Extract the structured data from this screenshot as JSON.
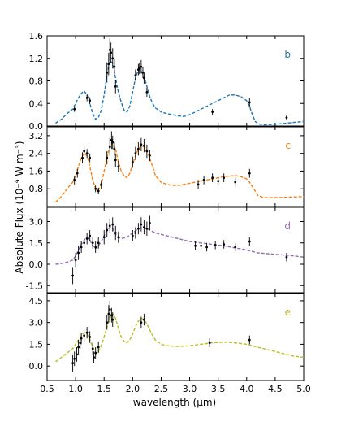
{
  "chart_data": {
    "type": "line",
    "xlabel": "wavelength (μm)",
    "ylabel": "Absolute Flux (10⁻⁹ W m⁻³)",
    "xlim": [
      0.5,
      5.0
    ],
    "xticks": [
      "0.5",
      "1.0",
      "1.5",
      "2.0",
      "2.5",
      "3.0",
      "3.5",
      "4.0",
      "4.5",
      "5.0"
    ],
    "grid": false,
    "panels": [
      {
        "label": "b",
        "color": "#1f77b4",
        "ylim": [
          0.0,
          1.6
        ],
        "yticks": [
          "0.0",
          "0.4",
          "0.8",
          "1.2",
          "1.6"
        ],
        "model": {
          "x": [
            0.65,
            0.75,
            0.85,
            0.95,
            1.0,
            1.05,
            1.1,
            1.15,
            1.2,
            1.25,
            1.3,
            1.35,
            1.4,
            1.45,
            1.5,
            1.55,
            1.6,
            1.65,
            1.7,
            1.75,
            1.8,
            1.85,
            1.9,
            1.95,
            2.0,
            2.05,
            2.1,
            2.15,
            2.2,
            2.25,
            2.3,
            2.35,
            2.4,
            2.5,
            2.6,
            2.7,
            2.8,
            2.9,
            3.0,
            3.1,
            3.2,
            3.3,
            3.4,
            3.5,
            3.6,
            3.7,
            3.8,
            3.9,
            4.0,
            4.05,
            4.1,
            4.15,
            4.2,
            4.3,
            4.5,
            4.7,
            5.0
          ],
          "y": [
            0.05,
            0.12,
            0.22,
            0.3,
            0.4,
            0.5,
            0.58,
            0.62,
            0.55,
            0.4,
            0.22,
            0.12,
            0.15,
            0.28,
            0.55,
            0.9,
            1.15,
            1.12,
            0.85,
            0.6,
            0.42,
            0.28,
            0.25,
            0.35,
            0.6,
            0.85,
            1.0,
            0.98,
            0.88,
            0.7,
            0.52,
            0.4,
            0.32,
            0.25,
            0.22,
            0.2,
            0.18,
            0.17,
            0.2,
            0.25,
            0.3,
            0.35,
            0.4,
            0.45,
            0.5,
            0.55,
            0.55,
            0.52,
            0.45,
            0.35,
            0.2,
            0.08,
            0.04,
            0.02,
            0.03,
            0.05,
            0.08
          ]
        },
        "observations": {
          "x": [
            0.98,
            1.2,
            1.25,
            1.55,
            1.58,
            1.6,
            1.62,
            1.65,
            1.68,
            1.7,
            2.05,
            2.1,
            2.12,
            2.15,
            2.18,
            2.2,
            2.25,
            3.4,
            4.05,
            4.7
          ],
          "y": [
            0.3,
            0.5,
            0.45,
            0.95,
            1.1,
            1.35,
            1.3,
            1.2,
            1.05,
            0.7,
            0.9,
            1.0,
            1.02,
            1.05,
            0.95,
            0.85,
            0.6,
            0.25,
            0.42,
            0.15
          ],
          "err": [
            0.05,
            0.06,
            0.06,
            0.18,
            0.2,
            0.2,
            0.18,
            0.18,
            0.15,
            0.12,
            0.1,
            0.1,
            0.1,
            0.12,
            0.1,
            0.1,
            0.08,
            0.05,
            0.08,
            0.05
          ]
        }
      },
      {
        "label": "c",
        "color": "#ff7f0e",
        "ylim": [
          0.0,
          3.6
        ],
        "yticks": [
          "0.8",
          "1.6",
          "2.4",
          "3.2"
        ],
        "model": {
          "x": [
            0.65,
            0.75,
            0.85,
            0.95,
            1.0,
            1.05,
            1.1,
            1.15,
            1.2,
            1.25,
            1.3,
            1.35,
            1.4,
            1.45,
            1.5,
            1.55,
            1.6,
            1.65,
            1.7,
            1.75,
            1.8,
            1.85,
            1.9,
            1.95,
            2.0,
            2.05,
            2.1,
            2.15,
            2.2,
            2.25,
            2.3,
            2.35,
            2.4,
            2.5,
            2.6,
            2.7,
            2.8,
            2.9,
            3.0,
            3.2,
            3.4,
            3.6,
            3.8,
            3.9,
            4.0,
            4.05,
            4.1,
            4.15,
            4.2,
            4.3,
            4.5,
            4.7,
            5.0
          ],
          "y": [
            0.2,
            0.45,
            0.8,
            1.1,
            1.4,
            1.8,
            2.2,
            2.4,
            2.3,
            1.8,
            1.2,
            0.8,
            0.75,
            1.0,
            1.6,
            2.2,
            2.7,
            2.9,
            2.6,
            2.0,
            1.6,
            1.4,
            1.3,
            1.5,
            1.9,
            2.3,
            2.6,
            2.75,
            2.7,
            2.5,
            2.2,
            1.8,
            1.4,
            1.1,
            1.0,
            0.95,
            0.95,
            1.0,
            1.05,
            1.15,
            1.25,
            1.35,
            1.4,
            1.35,
            1.25,
            1.1,
            0.9,
            0.7,
            0.5,
            0.4,
            0.4,
            0.42,
            0.45
          ]
        },
        "observations": {
          "x": [
            0.98,
            1.03,
            1.12,
            1.15,
            1.2,
            1.25,
            1.35,
            1.4,
            1.45,
            1.55,
            1.6,
            1.63,
            1.65,
            1.68,
            1.7,
            1.75,
            2.0,
            2.05,
            2.1,
            2.15,
            2.2,
            2.25,
            2.3,
            3.15,
            3.25,
            3.4,
            3.5,
            3.6,
            3.8,
            4.05
          ],
          "y": [
            1.2,
            1.5,
            2.2,
            2.5,
            2.4,
            2.2,
            0.8,
            0.7,
            1.0,
            2.2,
            2.7,
            3.0,
            2.9,
            2.6,
            2.1,
            1.8,
            2.0,
            2.4,
            2.6,
            2.8,
            2.75,
            2.5,
            2.3,
            1.0,
            1.2,
            1.3,
            1.15,
            1.3,
            1.1,
            1.5
          ],
          "err": [
            0.2,
            0.2,
            0.25,
            0.2,
            0.2,
            0.2,
            0.15,
            0.15,
            0.2,
            0.3,
            0.4,
            0.4,
            0.3,
            0.3,
            0.3,
            0.25,
            0.25,
            0.3,
            0.3,
            0.3,
            0.3,
            0.3,
            0.25,
            0.2,
            0.2,
            0.2,
            0.2,
            0.2,
            0.2,
            0.2
          ]
        }
      },
      {
        "label": "d",
        "color": "#9467bd",
        "ylim": [
          -2.0,
          4.0
        ],
        "yticks": [
          "-1.5",
          "0.0",
          "1.5",
          "3.0"
        ],
        "model": {
          "x": [
            0.65,
            0.75,
            0.85,
            0.95,
            1.0,
            1.05,
            1.1,
            1.15,
            1.2,
            1.25,
            1.3,
            1.35,
            1.4,
            1.45,
            1.5,
            1.55,
            1.6,
            1.65,
            1.7,
            1.75,
            1.8,
            1.9,
            2.0,
            2.1,
            2.2,
            2.3,
            2.4,
            2.6,
            2.8,
            3.0,
            3.2,
            3.4,
            3.6,
            3.8,
            4.0,
            4.2,
            4.5,
            4.8,
            5.0
          ],
          "y": [
            0.0,
            0.05,
            0.15,
            0.3,
            0.6,
            1.0,
            1.4,
            1.7,
            1.9,
            1.7,
            1.3,
            1.1,
            1.3,
            1.6,
            2.0,
            2.4,
            2.6,
            2.5,
            2.1,
            1.9,
            1.8,
            1.9,
            2.2,
            2.5,
            2.6,
            2.4,
            2.2,
            2.0,
            1.8,
            1.6,
            1.5,
            1.4,
            1.3,
            1.15,
            1.0,
            0.8,
            0.7,
            0.6,
            0.5
          ]
        },
        "observations": {
          "x": [
            0.95,
            1.0,
            1.05,
            1.1,
            1.15,
            1.2,
            1.25,
            1.3,
            1.35,
            1.4,
            1.5,
            1.55,
            1.6,
            1.65,
            1.7,
            1.75,
            2.0,
            2.05,
            2.1,
            2.15,
            2.2,
            2.25,
            2.3,
            3.1,
            3.2,
            3.3,
            3.45,
            3.6,
            3.8,
            4.05,
            4.7
          ],
          "y": [
            -0.8,
            0.3,
            0.8,
            1.2,
            1.5,
            1.8,
            2.0,
            1.5,
            1.2,
            1.5,
            1.9,
            2.4,
            2.7,
            2.8,
            2.2,
            1.9,
            2.0,
            2.2,
            2.5,
            2.8,
            2.6,
            2.5,
            2.9,
            1.3,
            1.3,
            1.2,
            1.35,
            1.4,
            1.2,
            1.6,
            0.5
          ],
          "err": [
            0.6,
            0.5,
            0.5,
            0.4,
            0.4,
            0.4,
            0.4,
            0.4,
            0.4,
            0.4,
            0.5,
            0.5,
            0.5,
            0.5,
            0.5,
            0.4,
            0.4,
            0.4,
            0.4,
            0.5,
            0.5,
            0.5,
            0.5,
            0.3,
            0.3,
            0.3,
            0.3,
            0.3,
            0.3,
            0.3,
            0.3
          ]
        }
      },
      {
        "label": "e",
        "color": "#bcbd22",
        "ylim": [
          -1.0,
          5.0
        ],
        "yticks": [
          "0.0",
          "1.5",
          "3.0",
          "4.5"
        ],
        "model": {
          "x": [
            0.65,
            0.75,
            0.85,
            0.95,
            1.0,
            1.05,
            1.1,
            1.15,
            1.2,
            1.25,
            1.3,
            1.35,
            1.4,
            1.45,
            1.5,
            1.55,
            1.6,
            1.65,
            1.7,
            1.75,
            1.8,
            1.85,
            1.9,
            1.95,
            2.0,
            2.05,
            2.1,
            2.15,
            2.2,
            2.25,
            2.3,
            2.35,
            2.4,
            2.5,
            2.6,
            2.8,
            3.0,
            3.2,
            3.4,
            3.6,
            3.8,
            4.0,
            4.2,
            4.4,
            4.6,
            4.8,
            5.0
          ],
          "y": [
            0.3,
            0.6,
            0.9,
            1.2,
            1.5,
            1.8,
            2.1,
            2.3,
            2.2,
            1.8,
            1.3,
            0.9,
            1.0,
            1.4,
            2.0,
            2.7,
            3.3,
            3.6,
            3.3,
            2.6,
            2.0,
            1.7,
            1.6,
            1.8,
            2.2,
            2.7,
            3.1,
            3.3,
            3.2,
            2.9,
            2.5,
            2.1,
            1.8,
            1.5,
            1.4,
            1.35,
            1.4,
            1.5,
            1.6,
            1.65,
            1.6,
            1.5,
            1.3,
            1.1,
            0.9,
            0.7,
            0.6
          ]
        },
        "observations": {
          "x": [
            0.95,
            0.98,
            1.02,
            1.05,
            1.08,
            1.1,
            1.15,
            1.2,
            1.25,
            1.3,
            1.32,
            1.35,
            1.4,
            1.55,
            1.58,
            1.6,
            1.63,
            1.65,
            2.15,
            2.2,
            3.35,
            4.05
          ],
          "y": [
            0.2,
            0.5,
            0.8,
            1.3,
            1.6,
            1.9,
            2.1,
            2.3,
            2.0,
            1.2,
            0.6,
            0.9,
            1.3,
            3.0,
            3.6,
            3.9,
            3.5,
            3.2,
            3.0,
            3.2,
            1.6,
            1.8
          ],
          "err": [
            0.6,
            0.5,
            0.5,
            0.5,
            0.4,
            0.4,
            0.4,
            0.4,
            0.4,
            0.4,
            0.4,
            0.4,
            0.4,
            0.5,
            0.6,
            0.6,
            0.5,
            0.5,
            0.4,
            0.4,
            0.3,
            0.3
          ]
        }
      }
    ]
  }
}
